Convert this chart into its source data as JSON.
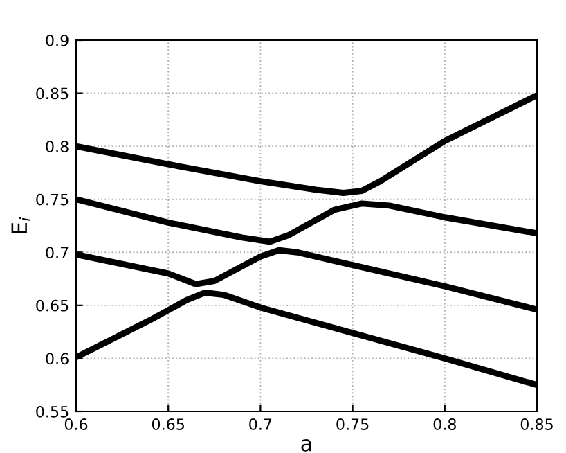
{
  "chart_data": {
    "type": "line",
    "xlabel": "a",
    "ylabel": "E$_{i}$",
    "series": [
      {
        "color": "#000000",
        "x": [
          0.6,
          0.65,
          0.7,
          0.73,
          0.745,
          0.755,
          0.765,
          0.8,
          0.85
        ],
        "values": [
          0.8,
          0.783,
          0.767,
          0.759,
          0.756,
          0.758,
          0.767,
          0.805,
          0.848
        ]
      },
      {
        "color": "#000000",
        "x": [
          0.6,
          0.65,
          0.69,
          0.705,
          0.715,
          0.74,
          0.755,
          0.77,
          0.8,
          0.85
        ],
        "values": [
          0.75,
          0.728,
          0.714,
          0.71,
          0.716,
          0.74,
          0.746,
          0.744,
          0.733,
          0.718
        ]
      },
      {
        "color": "#000000",
        "x": [
          0.6,
          0.65,
          0.665,
          0.675,
          0.7,
          0.71,
          0.72,
          0.75,
          0.8,
          0.85
        ],
        "values": [
          0.698,
          0.68,
          0.67,
          0.673,
          0.696,
          0.702,
          0.7,
          0.688,
          0.668,
          0.646
        ]
      },
      {
        "color": "#000000",
        "x": [
          0.6,
          0.64,
          0.66,
          0.67,
          0.68,
          0.7,
          0.75,
          0.8,
          0.85
        ],
        "values": [
          0.601,
          0.636,
          0.655,
          0.662,
          0.66,
          0.648,
          0.624,
          0.6,
          0.575
        ]
      }
    ],
    "xlim": [
      0.6,
      0.85
    ],
    "xticks": [
      0.6,
      0.65,
      0.7,
      0.75,
      0.8,
      0.85
    ],
    "ylim": [
      0.55,
      0.9
    ],
    "yticks": [
      0.55,
      0.6,
      0.65,
      0.7,
      0.75,
      0.8,
      0.85,
      0.9
    ],
    "grid": true,
    "marker": "none",
    "line_style": "solid"
  }
}
